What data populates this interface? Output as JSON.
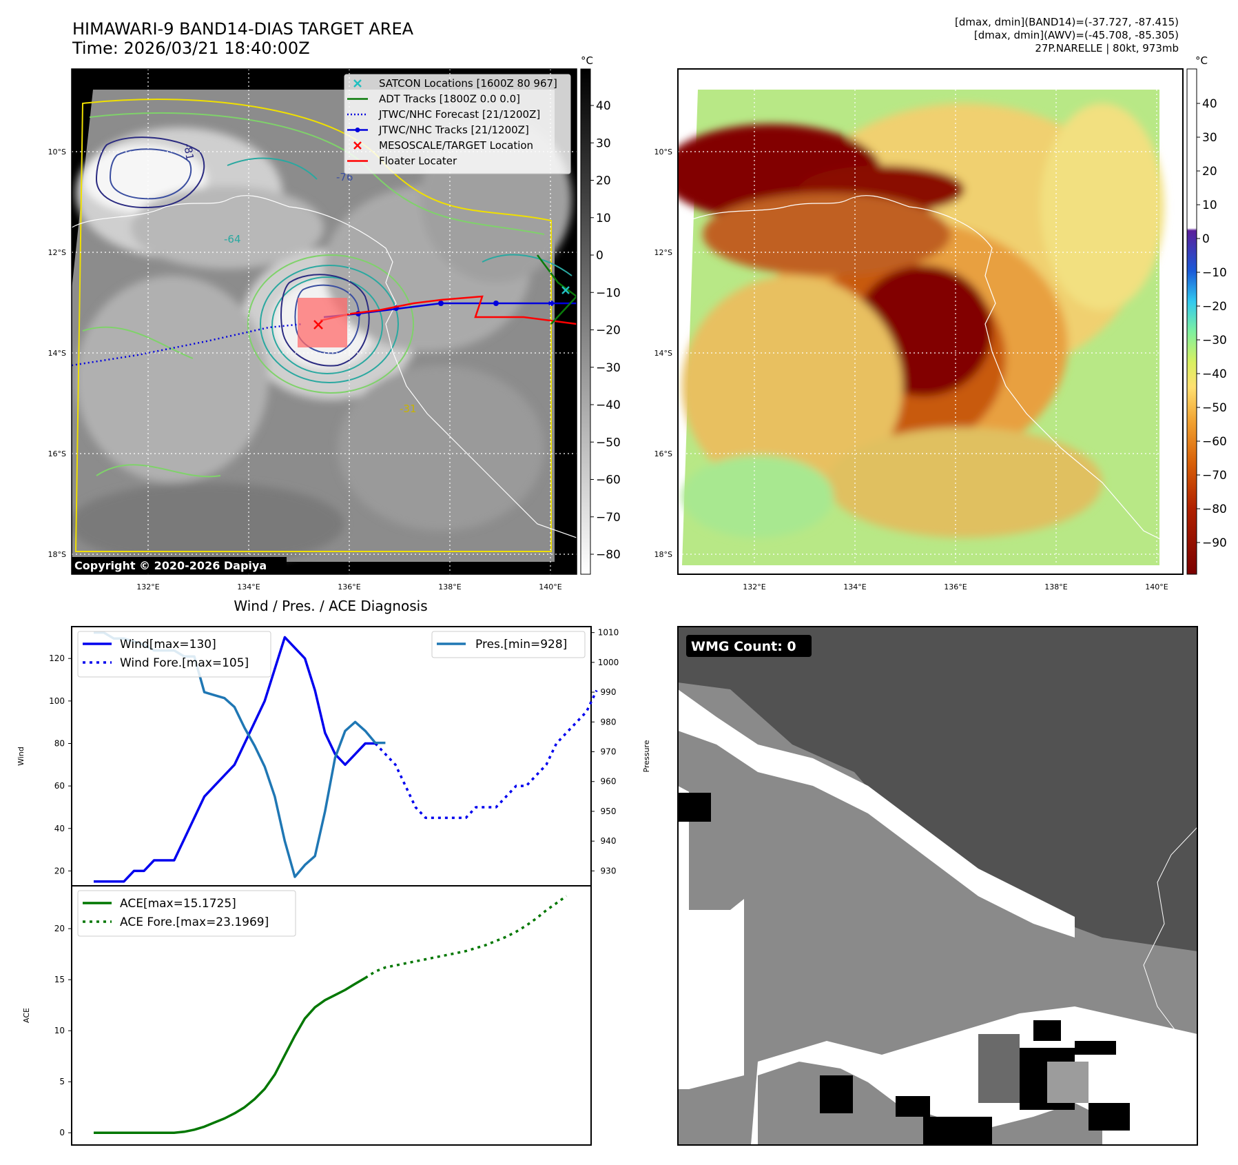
{
  "header": {
    "title_line1": "HIMAWARI-9 BAND14-DIAS TARGET AREA",
    "title_line2": "Time: 2026/03/21 18:40:00Z",
    "info_line1": "[dmax, dmin](BAND14)=(-37.727, -87.415)",
    "info_line2": "[dmax, dmin](AWV)=(-45.708, -85.305)",
    "info_line3": "27P.NARELLE | 80kt, 973mb"
  },
  "map": {
    "lat_labels": [
      "10°S",
      "12°S",
      "14°S",
      "16°S",
      "18°S"
    ],
    "lon_labels": [
      "132°E",
      "134°E",
      "136°E",
      "138°E",
      "140°E"
    ],
    "copyright": "Copyright © 2020-2026 Dapiya",
    "contour_labels": [
      "-31",
      "-64",
      "-76",
      "-81"
    ]
  },
  "colorbar_left": {
    "unit": "°C",
    "ticks": [
      "40",
      "30",
      "20",
      "10",
      "0",
      "−10",
      "−20",
      "−30",
      "−40",
      "−50",
      "−60",
      "−70",
      "−80"
    ]
  },
  "colorbar_right": {
    "unit": "°C",
    "ticks": [
      "40",
      "30",
      "20",
      "10",
      "0",
      "−10",
      "−20",
      "−30",
      "−40",
      "−50",
      "−60",
      "−70",
      "−80",
      "−90"
    ]
  },
  "legend": [
    {
      "label": "SATCON Locations [1600Z 80 967]",
      "color": "#22c0c0",
      "style": "x"
    },
    {
      "label": "ADT Tracks [1800Z 0.0 0.0]",
      "color": "#0a7a0a",
      "style": "line"
    },
    {
      "label": "JTWC/NHC Forecast [21/1200Z]",
      "color": "#0000dd",
      "style": "dotted"
    },
    {
      "label": "JTWC/NHC Tracks [21/1200Z]",
      "color": "#0000dd",
      "style": "line-dot"
    },
    {
      "label": "MESOSCALE/TARGET Location",
      "color": "#ff0000",
      "style": "x"
    },
    {
      "label": "Floater Locater",
      "color": "#ff0000",
      "style": "line"
    }
  ],
  "wmg": {
    "label": "WMG Count: 0"
  },
  "chart_data": [
    {
      "type": "line",
      "title": "Wind / Pres. / ACE Diagnosis",
      "ylabel": "Wind",
      "y2label": "Pressure",
      "ylim": [
        13,
        135
      ],
      "y2lim": [
        925,
        1012
      ],
      "yticks": [
        20,
        40,
        60,
        80,
        100,
        120
      ],
      "y2ticks": [
        930,
        940,
        950,
        960,
        970,
        980,
        990,
        1000,
        1010
      ],
      "series": [
        {
          "name": "Wind[max=130]",
          "color": "#0000ee",
          "axis": "left",
          "style": "solid",
          "values": [
            15,
            15,
            15,
            15,
            20,
            20,
            25,
            25,
            25,
            35,
            45,
            55,
            60,
            65,
            70,
            80,
            90,
            100,
            115,
            130,
            125,
            120,
            105,
            85,
            75,
            70,
            75,
            80,
            80
          ]
        },
        {
          "name": "Wind Fore.[max=105]",
          "color": "#0000ee",
          "axis": "left",
          "style": "dotted",
          "start": 28,
          "values": [
            80,
            75,
            70,
            60,
            50,
            45,
            45,
            45,
            45,
            45,
            50,
            50,
            50,
            55,
            60,
            60,
            65,
            70,
            80,
            85,
            90,
            95,
            105
          ]
        },
        {
          "name": "Pres.[min=928]",
          "color": "#1f77b4",
          "axis": "right",
          "style": "solid",
          "values": [
            1010,
            1010,
            1008,
            1008,
            1007,
            1006,
            1004,
            1004,
            1004,
            1002,
            1002,
            990,
            989,
            988,
            985,
            978,
            972,
            965,
            955,
            940,
            928,
            932,
            935,
            950,
            968,
            977,
            980,
            977,
            973,
            973
          ]
        }
      ]
    },
    {
      "type": "line",
      "ylabel": "ACE",
      "ylim": [
        -1.2,
        24.2
      ],
      "yticks": [
        0,
        5,
        10,
        15,
        20
      ],
      "series": [
        {
          "name": "ACE[max=15.1725]",
          "color": "#007700",
          "style": "solid",
          "values": [
            0,
            0,
            0,
            0,
            0,
            0,
            0,
            0,
            0,
            0.1,
            0.3,
            0.6,
            1.0,
            1.4,
            1.9,
            2.5,
            3.3,
            4.3,
            5.7,
            7.6,
            9.5,
            11.2,
            12.3,
            13.0,
            13.5,
            14.0,
            14.6,
            15.1725
          ]
        },
        {
          "name": "ACE Fore.[max=23.1969]",
          "color": "#007700",
          "style": "dotted",
          "start": 27,
          "values": [
            15.1725,
            15.8,
            16.2,
            16.4,
            16.6,
            16.8,
            17.0,
            17.2,
            17.4,
            17.6,
            17.8,
            18.1,
            18.4,
            18.8,
            19.2,
            19.7,
            20.3,
            21.0,
            21.8,
            22.5,
            23.1969
          ]
        }
      ]
    }
  ]
}
